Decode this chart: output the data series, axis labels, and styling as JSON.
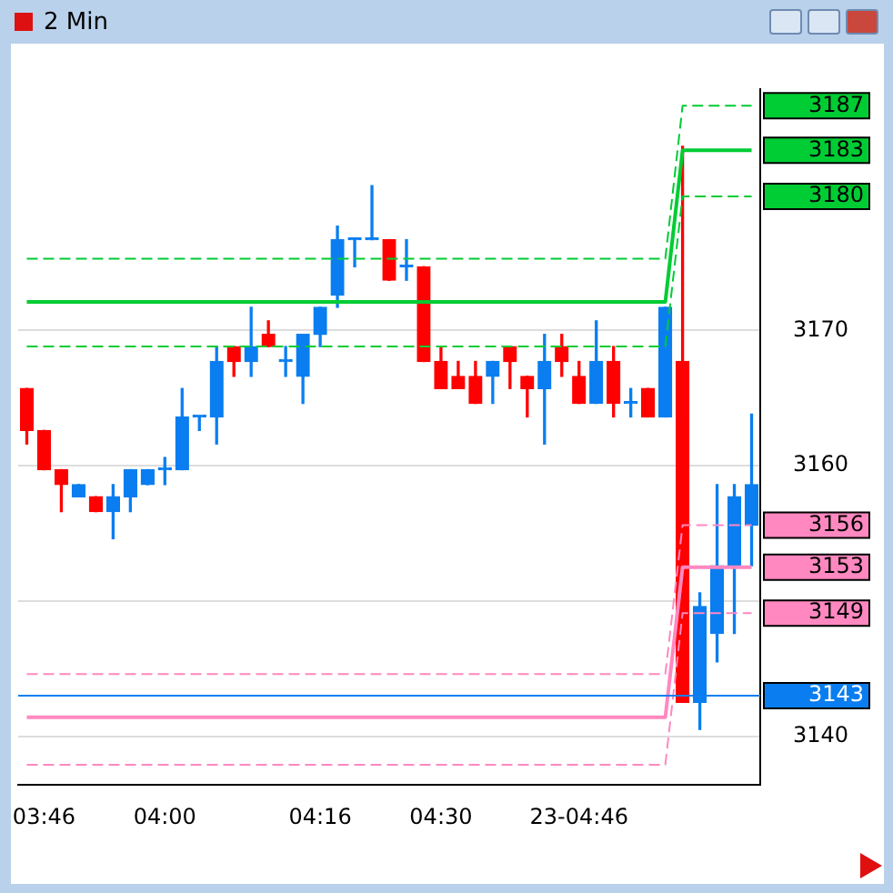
{
  "chart_data": {
    "type": "candlestick",
    "title": "2 Min",
    "categories": [
      null,
      "03:46",
      null,
      null,
      null,
      null,
      null,
      null,
      "04:00",
      null,
      null,
      null,
      null,
      null,
      null,
      null,
      null,
      "04:16",
      null,
      null,
      null,
      null,
      null,
      null,
      "04:30",
      null,
      null,
      null,
      null,
      null,
      null,
      null,
      "23-04:46",
      null,
      null,
      null,
      null,
      null,
      null,
      null,
      null,
      null,
      null
    ],
    "ohlc": [
      [
        3165.7,
        3165.7,
        3161.6,
        3162.6
      ],
      [
        3162.6,
        3162.6,
        3159.7,
        3159.7
      ],
      [
        3159.7,
        3159.7,
        3156.6,
        3158.6
      ],
      [
        3157.7,
        3158.6,
        3157.7,
        3158.6
      ],
      [
        3157.7,
        3157.7,
        3156.6,
        3156.6
      ],
      [
        3156.6,
        3158.6,
        3154.6,
        3157.7
      ],
      [
        3157.7,
        3159.7,
        3156.6,
        3159.7
      ],
      [
        3158.6,
        3159.7,
        3158.6,
        3159.7
      ],
      [
        3159.7,
        3160.6,
        3158.6,
        3159.7
      ],
      [
        3159.7,
        3165.7,
        3159.7,
        3163.6
      ],
      [
        3163.6,
        3163.6,
        3162.6,
        3163.6
      ],
      [
        3163.6,
        3168.8,
        3161.6,
        3167.7
      ],
      [
        3168.8,
        3168.8,
        3166.6,
        3167.7
      ],
      [
        3167.7,
        3171.7,
        3166.6,
        3168.8
      ],
      [
        3169.7,
        3170.7,
        3168.8,
        3168.8
      ],
      [
        3167.7,
        3168.8,
        3166.6,
        3167.7
      ],
      [
        3166.6,
        3169.7,
        3164.6,
        3169.7
      ],
      [
        3169.7,
        3171.7,
        3168.8,
        3171.7
      ],
      [
        3172.6,
        3177.7,
        3171.7,
        3176.7
      ],
      [
        3176.7,
        3176.7,
        3174.7,
        3176.7
      ],
      [
        3176.7,
        3180.7,
        3176.7,
        3176.7
      ],
      [
        3176.7,
        3176.7,
        3173.7,
        3173.7
      ],
      [
        3174.7,
        3176.7,
        3173.7,
        3174.7
      ],
      [
        3174.7,
        3174.7,
        3167.7,
        3167.7
      ],
      [
        3167.7,
        3168.8,
        3165.7,
        3165.7
      ],
      [
        3166.6,
        3167.7,
        3165.7,
        3165.7
      ],
      [
        3166.6,
        3167.7,
        3164.6,
        3164.6
      ],
      [
        3166.6,
        3167.7,
        3164.6,
        3167.7
      ],
      [
        3168.8,
        3168.8,
        3165.7,
        3167.7
      ],
      [
        3166.6,
        3166.6,
        3163.6,
        3165.7
      ],
      [
        3165.7,
        3169.7,
        3161.6,
        3167.7
      ],
      [
        3168.8,
        3169.7,
        3166.6,
        3167.7
      ],
      [
        3166.6,
        3167.7,
        3164.6,
        3164.6
      ],
      [
        3164.6,
        3170.7,
        3164.6,
        3167.7
      ],
      [
        3167.7,
        3168.8,
        3163.6,
        3164.6
      ],
      [
        3164.6,
        3165.7,
        3163.6,
        3164.6
      ],
      [
        3165.7,
        3165.7,
        3163.6,
        3163.6
      ],
      [
        3163.6,
        3171.7,
        3163.6,
        3171.7
      ],
      [
        3167.7,
        3183.6,
        3142.5,
        3142.5
      ],
      [
        3142.5,
        3150.6,
        3140.5,
        3149.6
      ],
      [
        3147.6,
        3158.6,
        3145.5,
        3152.6
      ],
      [
        3152.6,
        3158.6,
        3147.6,
        3157.7
      ],
      [
        3155.6,
        3163.8,
        3152.6,
        3158.6
      ]
    ],
    "colors": [
      "#ff0000",
      "#ff0000",
      "#ff0000",
      "#0a7ef0",
      "#ff0000",
      "#0a7ef0",
      "#0a7ef0",
      "#0a7ef0",
      "#0a7ef0",
      "#0a7ef0",
      "#0a7ef0",
      "#0a7ef0",
      "#ff0000",
      "#0a7ef0",
      "#ff0000",
      "#0a7ef0",
      "#0a7ef0",
      "#0a7ef0",
      "#0a7ef0",
      "#0a7ef0",
      "#0a7ef0",
      "#ff0000",
      "#0a7ef0",
      "#ff0000",
      "#ff0000",
      "#ff0000",
      "#ff0000",
      "#0a7ef0",
      "#ff0000",
      "#ff0000",
      "#0a7ef0",
      "#ff0000",
      "#ff0000",
      "#0a7ef0",
      "#ff0000",
      "#0a7ef0",
      "#ff0000",
      "#0a7ef0",
      "#ff0000",
      "#0a7ef0",
      "#0a7ef0",
      "#0a7ef0",
      "#0a7ef0"
    ],
    "series": [
      {
        "type": "line",
        "color": "#00cc33",
        "line_style": "dashed",
        "values": [
          3175.3,
          3175.3,
          3175.3,
          3175.3,
          3175.3,
          3175.3,
          3175.3,
          3175.3,
          3175.3,
          3175.3,
          3175.3,
          3175.3,
          3175.3,
          3175.3,
          3175.3,
          3175.3,
          3175.3,
          3175.3,
          3175.3,
          3175.3,
          3175.3,
          3175.3,
          3175.3,
          3175.3,
          3175.3,
          3175.3,
          3175.3,
          3175.3,
          3175.3,
          3175.3,
          3175.3,
          3175.3,
          3175.3,
          3175.3,
          3175.3,
          3175.3,
          3175.3,
          3175.3,
          3186.6,
          3186.6,
          3186.6,
          3186.6,
          3186.6
        ]
      },
      {
        "type": "line",
        "color": "#00cc33",
        "line_style": "solid",
        "values": [
          3172.1,
          3172.1,
          3172.1,
          3172.1,
          3172.1,
          3172.1,
          3172.1,
          3172.1,
          3172.1,
          3172.1,
          3172.1,
          3172.1,
          3172.1,
          3172.1,
          3172.1,
          3172.1,
          3172.1,
          3172.1,
          3172.1,
          3172.1,
          3172.1,
          3172.1,
          3172.1,
          3172.1,
          3172.1,
          3172.1,
          3172.1,
          3172.1,
          3172.1,
          3172.1,
          3172.1,
          3172.1,
          3172.1,
          3172.1,
          3172.1,
          3172.1,
          3172.1,
          3172.1,
          3183.3,
          3183.3,
          3183.3,
          3183.3,
          3183.3
        ]
      },
      {
        "type": "line",
        "color": "#00cc33",
        "line_style": "dashed",
        "values": [
          3168.8,
          3168.8,
          3168.8,
          3168.8,
          3168.8,
          3168.8,
          3168.8,
          3168.8,
          3168.8,
          3168.8,
          3168.8,
          3168.8,
          3168.8,
          3168.8,
          3168.8,
          3168.8,
          3168.8,
          3168.8,
          3168.8,
          3168.8,
          3168.8,
          3168.8,
          3168.8,
          3168.8,
          3168.8,
          3168.8,
          3168.8,
          3168.8,
          3168.8,
          3168.8,
          3168.8,
          3168.8,
          3168.8,
          3168.8,
          3168.8,
          3168.8,
          3168.8,
          3168.8,
          3179.9,
          3179.9,
          3179.9,
          3179.9,
          3179.9
        ]
      },
      {
        "type": "line",
        "color": "#ff88c0",
        "line_style": "dashed",
        "values": [
          3144.6,
          3144.6,
          3144.6,
          3144.6,
          3144.6,
          3144.6,
          3144.6,
          3144.6,
          3144.6,
          3144.6,
          3144.6,
          3144.6,
          3144.6,
          3144.6,
          3144.6,
          3144.6,
          3144.6,
          3144.6,
          3144.6,
          3144.6,
          3144.6,
          3144.6,
          3144.6,
          3144.6,
          3144.6,
          3144.6,
          3144.6,
          3144.6,
          3144.6,
          3144.6,
          3144.6,
          3144.6,
          3144.6,
          3144.6,
          3144.6,
          3144.6,
          3144.6,
          3144.6,
          3155.6,
          3155.6,
          3155.6,
          3155.6,
          3155.6
        ]
      },
      {
        "type": "line",
        "color": "#ff88c0",
        "line_style": "solid",
        "values": [
          3141.4,
          3141.4,
          3141.4,
          3141.4,
          3141.4,
          3141.4,
          3141.4,
          3141.4,
          3141.4,
          3141.4,
          3141.4,
          3141.4,
          3141.4,
          3141.4,
          3141.4,
          3141.4,
          3141.4,
          3141.4,
          3141.4,
          3141.4,
          3141.4,
          3141.4,
          3141.4,
          3141.4,
          3141.4,
          3141.4,
          3141.4,
          3141.4,
          3141.4,
          3141.4,
          3141.4,
          3141.4,
          3141.4,
          3141.4,
          3141.4,
          3141.4,
          3141.4,
          3141.4,
          3152.5,
          3152.5,
          3152.5,
          3152.5,
          3152.5
        ]
      },
      {
        "type": "line",
        "color": "#ff88c0",
        "line_style": "dashed",
        "values": [
          3137.9,
          3137.9,
          3137.9,
          3137.9,
          3137.9,
          3137.9,
          3137.9,
          3137.9,
          3137.9,
          3137.9,
          3137.9,
          3137.9,
          3137.9,
          3137.9,
          3137.9,
          3137.9,
          3137.9,
          3137.9,
          3137.9,
          3137.9,
          3137.9,
          3137.9,
          3137.9,
          3137.9,
          3137.9,
          3137.9,
          3137.9,
          3137.9,
          3137.9,
          3137.9,
          3137.9,
          3137.9,
          3137.9,
          3137.9,
          3137.9,
          3137.9,
          3137.9,
          3137.9,
          3149.1,
          3149.1,
          3149.1,
          3149.1,
          3149.1
        ]
      }
    ],
    "ref_lines": [
      {
        "axis": "y",
        "value": 3143,
        "label": "3143",
        "color": "#0a7ef0"
      }
    ],
    "annotations": [
      "3187",
      "3183",
      "3180",
      "3156",
      "3153",
      "3149"
    ],
    "ylim": [
      3136.4,
      3187.8
    ],
    "yticks": [
      3140,
      {
        "value": 3150,
        "label": null
      },
      3160,
      3170
    ],
    "grid": "y",
    "legend": false
  }
}
